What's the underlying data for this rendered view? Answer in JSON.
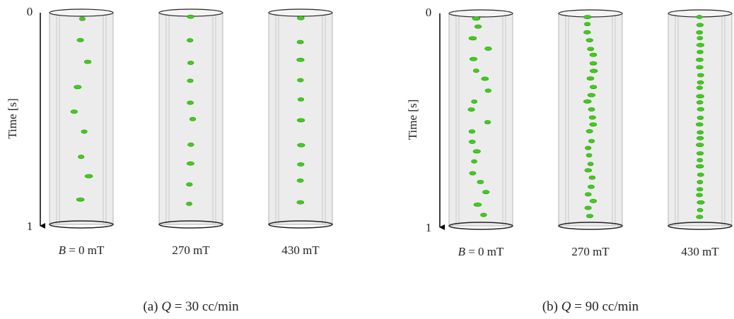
{
  "panels": [
    {
      "axis_label": "Time [s]",
      "time_ticks": [
        0,
        1
      ],
      "conditions": [
        {
          "symbol": "B",
          "text": "= 0 mT"
        },
        {
          "text": "270 mT"
        },
        {
          "text": "430 mT"
        }
      ],
      "caption": {
        "prefix": "(a)",
        "symbol": "Q",
        "text": "= 30 cc/min"
      }
    },
    {
      "axis_label": "Time [s]",
      "time_ticks": [
        0,
        1
      ],
      "conditions": [
        {
          "symbol": "B",
          "text": "= 0 mT"
        },
        {
          "text": "270 mT"
        },
        {
          "text": "430 mT"
        }
      ],
      "caption": {
        "prefix": "(b)",
        "symbol": "Q",
        "text": "= 90 cc/min"
      }
    }
  ]
}
